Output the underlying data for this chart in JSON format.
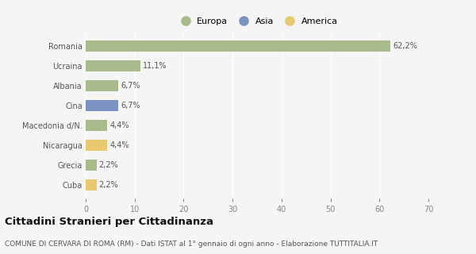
{
  "categories": [
    "Romania",
    "Ucraina",
    "Albania",
    "Cina",
    "Macedonia d/N.",
    "Nicaragua",
    "Grecia",
    "Cuba"
  ],
  "values": [
    62.2,
    11.1,
    6.7,
    6.7,
    4.4,
    4.4,
    2.2,
    2.2
  ],
  "labels": [
    "62,2%",
    "11,1%",
    "6,7%",
    "6,7%",
    "4,4%",
    "4,4%",
    "2,2%",
    "2,2%"
  ],
  "bar_colors": [
    "#a8bb8a",
    "#a8bb8a",
    "#a8bb8a",
    "#7b93c0",
    "#a8bb8a",
    "#e8c96e",
    "#a8bb8a",
    "#e8c96e"
  ],
  "legend": [
    {
      "label": "Europa",
      "color": "#a8bb8a"
    },
    {
      "label": "Asia",
      "color": "#7b93c0"
    },
    {
      "label": "America",
      "color": "#e8c96e"
    }
  ],
  "xlim": [
    0,
    70
  ],
  "xticks": [
    0,
    10,
    20,
    30,
    40,
    50,
    60,
    70
  ],
  "title": "Cittadini Stranieri per Cittadinanza",
  "subtitle": "COMUNE DI CERVARA DI ROMA (RM) - Dati ISTAT al 1° gennaio di ogni anno - Elaborazione TUTTITALIA.IT",
  "bg_color": "#f5f5f5",
  "grid_color": "#ffffff",
  "title_fontsize": 9.5,
  "subtitle_fontsize": 6.5,
  "label_fontsize": 7,
  "tick_fontsize": 7,
  "legend_fontsize": 8
}
